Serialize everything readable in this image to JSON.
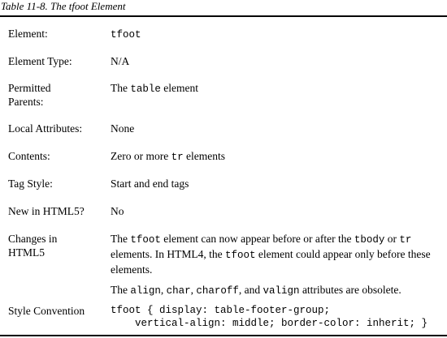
{
  "caption": "Table 11-8. The tfoot Element",
  "rows": [
    {
      "label": "Element:",
      "value_code": "tfoot"
    },
    {
      "label": "Element Type:",
      "value": "N/A"
    },
    {
      "label": "Permitted Parents:",
      "value_pre": "The ",
      "value_code": "table",
      "value_post": " element"
    },
    {
      "label": "Local Attributes:",
      "value": "None"
    },
    {
      "label": "Contents:",
      "value_pre": "Zero or more ",
      "value_code": "tr",
      "value_post": " elements"
    },
    {
      "label": "Tag Style:",
      "value": "Start and end tags"
    },
    {
      "label": "New in HTML5?",
      "value": "No"
    },
    {
      "label": "Changes in HTML5",
      "p1": {
        "t1": "The ",
        "c1": "tfoot",
        "t2": " element can now appear before or after the ",
        "c2": "tbody",
        "t3": " or ",
        "c3": "tr",
        "t4": " elements. In HTML4, the ",
        "c4": "tfoot",
        "t5": " element could appear only before these elements."
      },
      "p2": {
        "t1": "The ",
        "c1": "align",
        "t2": ", ",
        "c2": "char",
        "t3": ", ",
        "c3": "charoff",
        "t4": ", and ",
        "c4": "valign",
        "t5": " attributes are obsolete."
      }
    },
    {
      "label": "Style Convention",
      "code_line1": "tfoot { display: table-footer-group;",
      "code_line2": "    vertical-align: middle; border-color: inherit; }"
    }
  ]
}
